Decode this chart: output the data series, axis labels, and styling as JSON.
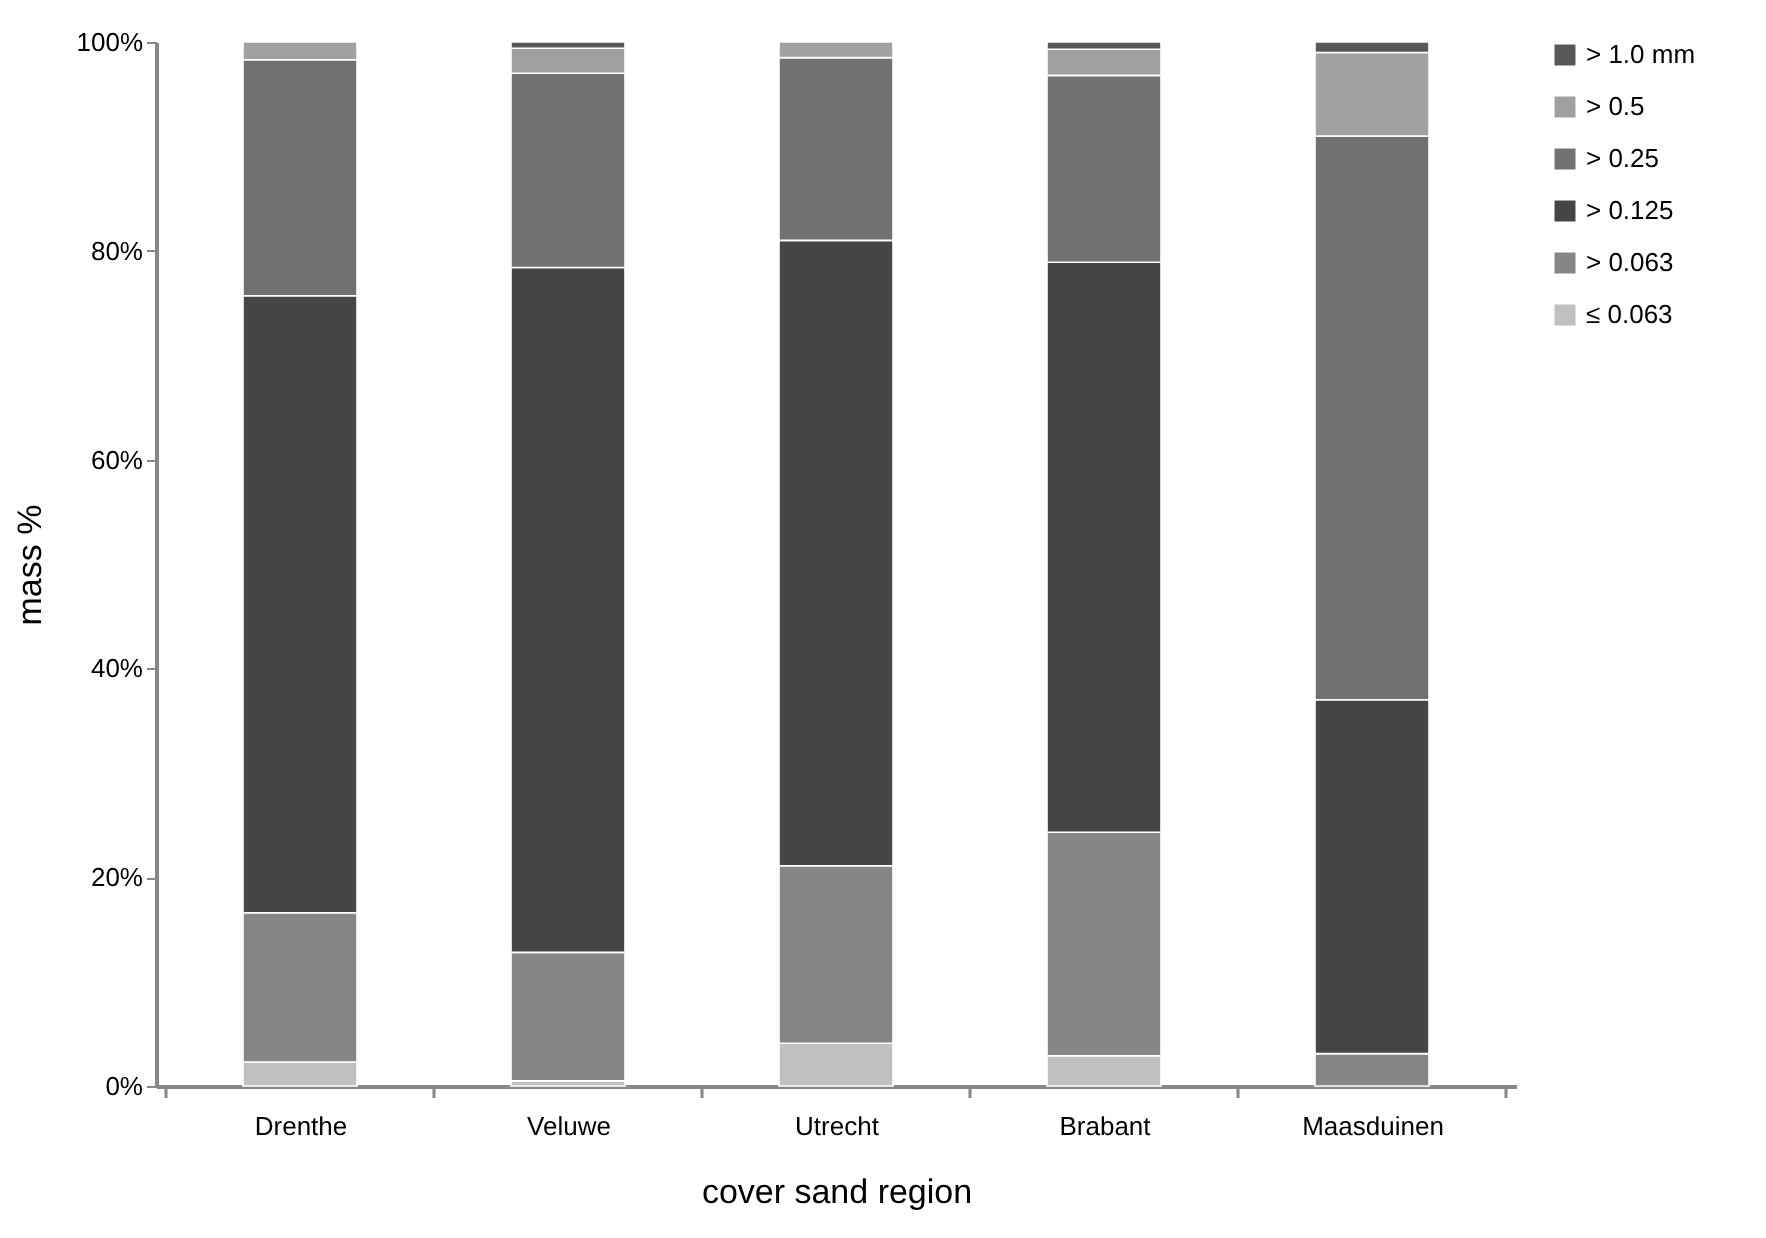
{
  "chart_data": {
    "type": "bar",
    "stacked": true,
    "xlabel": "cover sand region",
    "ylabel": "mass %",
    "categories": [
      "Drenthe",
      "Veluwe",
      "Utrecht",
      "Brabant",
      "Maasduinen"
    ],
    "series": [
      {
        "name": "≤ 0.063",
        "color": "#c0c0c0",
        "values": [
          2.3,
          0.5,
          4.1,
          2.9,
          0
        ]
      },
      {
        "name": "> 0.063",
        "color": "#868686",
        "values": [
          14.3,
          12.3,
          17.0,
          21.4,
          3.1
        ]
      },
      {
        "name": "> 0.125",
        "color": "#444645",
        "values": [
          59.1,
          65.6,
          59.9,
          54.6,
          33.9
        ]
      },
      {
        "name": "> 0.25",
        "color": "#707172",
        "values": [
          22.6,
          18.6,
          17.5,
          17.9,
          54.0
        ]
      },
      {
        "name": "> 0.5",
        "color": "#a0a0a0",
        "values": [
          1.7,
          2.4,
          1.5,
          2.5,
          8.0
        ]
      },
      {
        "name": "> 1.0 mm",
        "color": "#585858",
        "values": [
          0,
          0.6,
          0,
          0.7,
          1.0
        ]
      }
    ],
    "ylim": [
      0,
      100
    ],
    "yticks": [
      {
        "value": 0,
        "label": "0%"
      },
      {
        "value": 20,
        "label": "20%"
      },
      {
        "value": 40,
        "label": "40%"
      },
      {
        "value": 60,
        "label": "60%"
      },
      {
        "value": 80,
        "label": "80%"
      },
      {
        "value": 100,
        "label": "100%"
      }
    ],
    "grid": false,
    "legend": "top right"
  }
}
